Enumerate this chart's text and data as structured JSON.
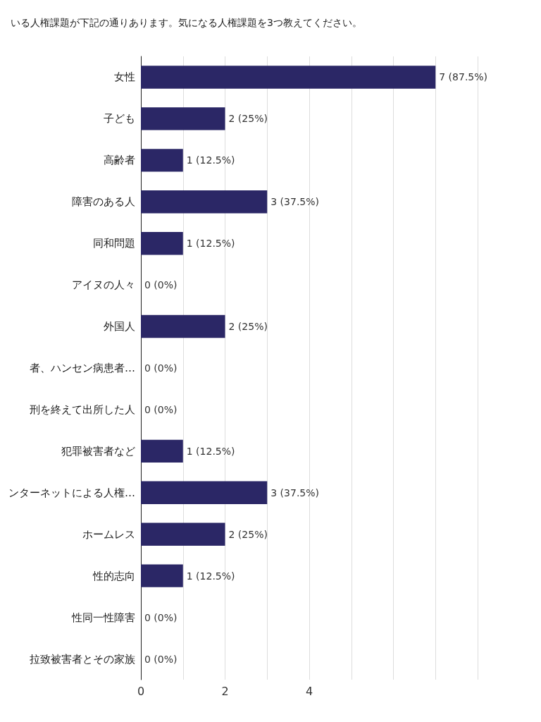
{
  "chart_data": {
    "type": "bar",
    "orientation": "horizontal",
    "title": "いる人権課題が下記の通りあります。気になる人権課題を3つ教えてください。",
    "categories": [
      "女性",
      "子ども",
      "高齢者",
      "障害のある人",
      "同和問題",
      "アイヌの人々",
      "外国人",
      "者、ハンセン病患者…",
      "刑を終えて出所した人",
      "犯罪被害者など",
      "ンターネットによる人権…",
      "ホームレス",
      "性的志向",
      "性同一性障害",
      "拉致被害者とその家族"
    ],
    "values": [
      7,
      2,
      1,
      3,
      1,
      0,
      2,
      0,
      0,
      1,
      3,
      2,
      1,
      0,
      0
    ],
    "value_labels": [
      "7 (87.5%)",
      "2 (25%)",
      "1 (12.5%)",
      "3 (37.5%)",
      "1 (12.5%)",
      "0 (0%)",
      "2 (25%)",
      "0 (0%)",
      "0 (0%)",
      "1 (12.5%)",
      "3 (37.5%)",
      "2 (25%)",
      "1 (12.5%)",
      "0 (0%)",
      "0 (0%)"
    ],
    "color": "#2b2766",
    "xlim": [
      0,
      8
    ],
    "xticks": [
      0,
      {
        "value": 1,
        "label": null
      },
      2,
      {
        "value": 3,
        "label": null
      },
      4,
      {
        "value": 5,
        "label": null
      },
      {
        "value": 6,
        "label": null
      },
      {
        "value": 7,
        "label": null
      },
      {
        "value": 8,
        "label": null
      }
    ],
    "grid": "x"
  }
}
